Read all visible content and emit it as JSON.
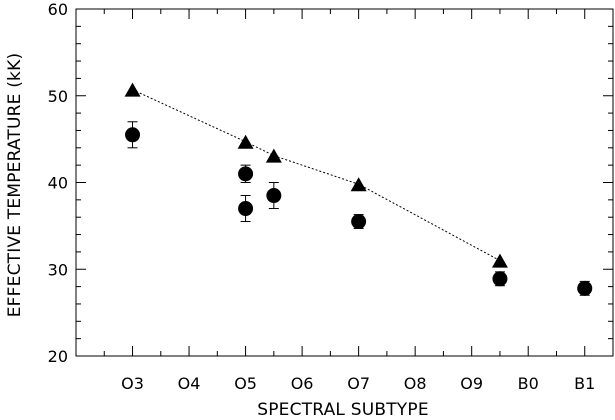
{
  "chart_data": {
    "type": "scatter",
    "xlabel": "SPECTRAL SUBTYPE",
    "ylabel": "EFFECTIVE TEMPERATURE (kK)",
    "categories": [
      "O3",
      "O4",
      "O5",
      "O6",
      "O7",
      "O8",
      "O9",
      "B0",
      "B1"
    ],
    "xlim": [
      2,
      11.5
    ],
    "ylim": [
      20,
      60
    ],
    "yticks": [
      20,
      30,
      40,
      50,
      60
    ],
    "grid": false,
    "legend": "none",
    "series": [
      {
        "marker": "triangle",
        "line": "dotted",
        "points": [
          {
            "x": 3.0,
            "y": 50.7
          },
          {
            "x": 5.0,
            "y": 44.7
          },
          {
            "x": 5.5,
            "y": 43.1
          },
          {
            "x": 7.0,
            "y": 39.8
          },
          {
            "x": 9.5,
            "y": 31.0
          }
        ]
      },
      {
        "marker": "circle",
        "line": "none",
        "points": [
          {
            "x": 3.0,
            "y": 45.5,
            "err": 1.5
          },
          {
            "x": 5.0,
            "y": 41.0,
            "err": 1.0
          },
          {
            "x": 5.0,
            "y": 37.0,
            "err": 1.5
          },
          {
            "x": 5.5,
            "y": 38.5,
            "err": 1.5
          },
          {
            "x": 7.0,
            "y": 35.5,
            "err": 0.8
          },
          {
            "x": 9.5,
            "y": 28.9,
            "err": 0.8
          },
          {
            "x": 11.0,
            "y": 27.8,
            "err": 0.8
          }
        ]
      }
    ]
  }
}
